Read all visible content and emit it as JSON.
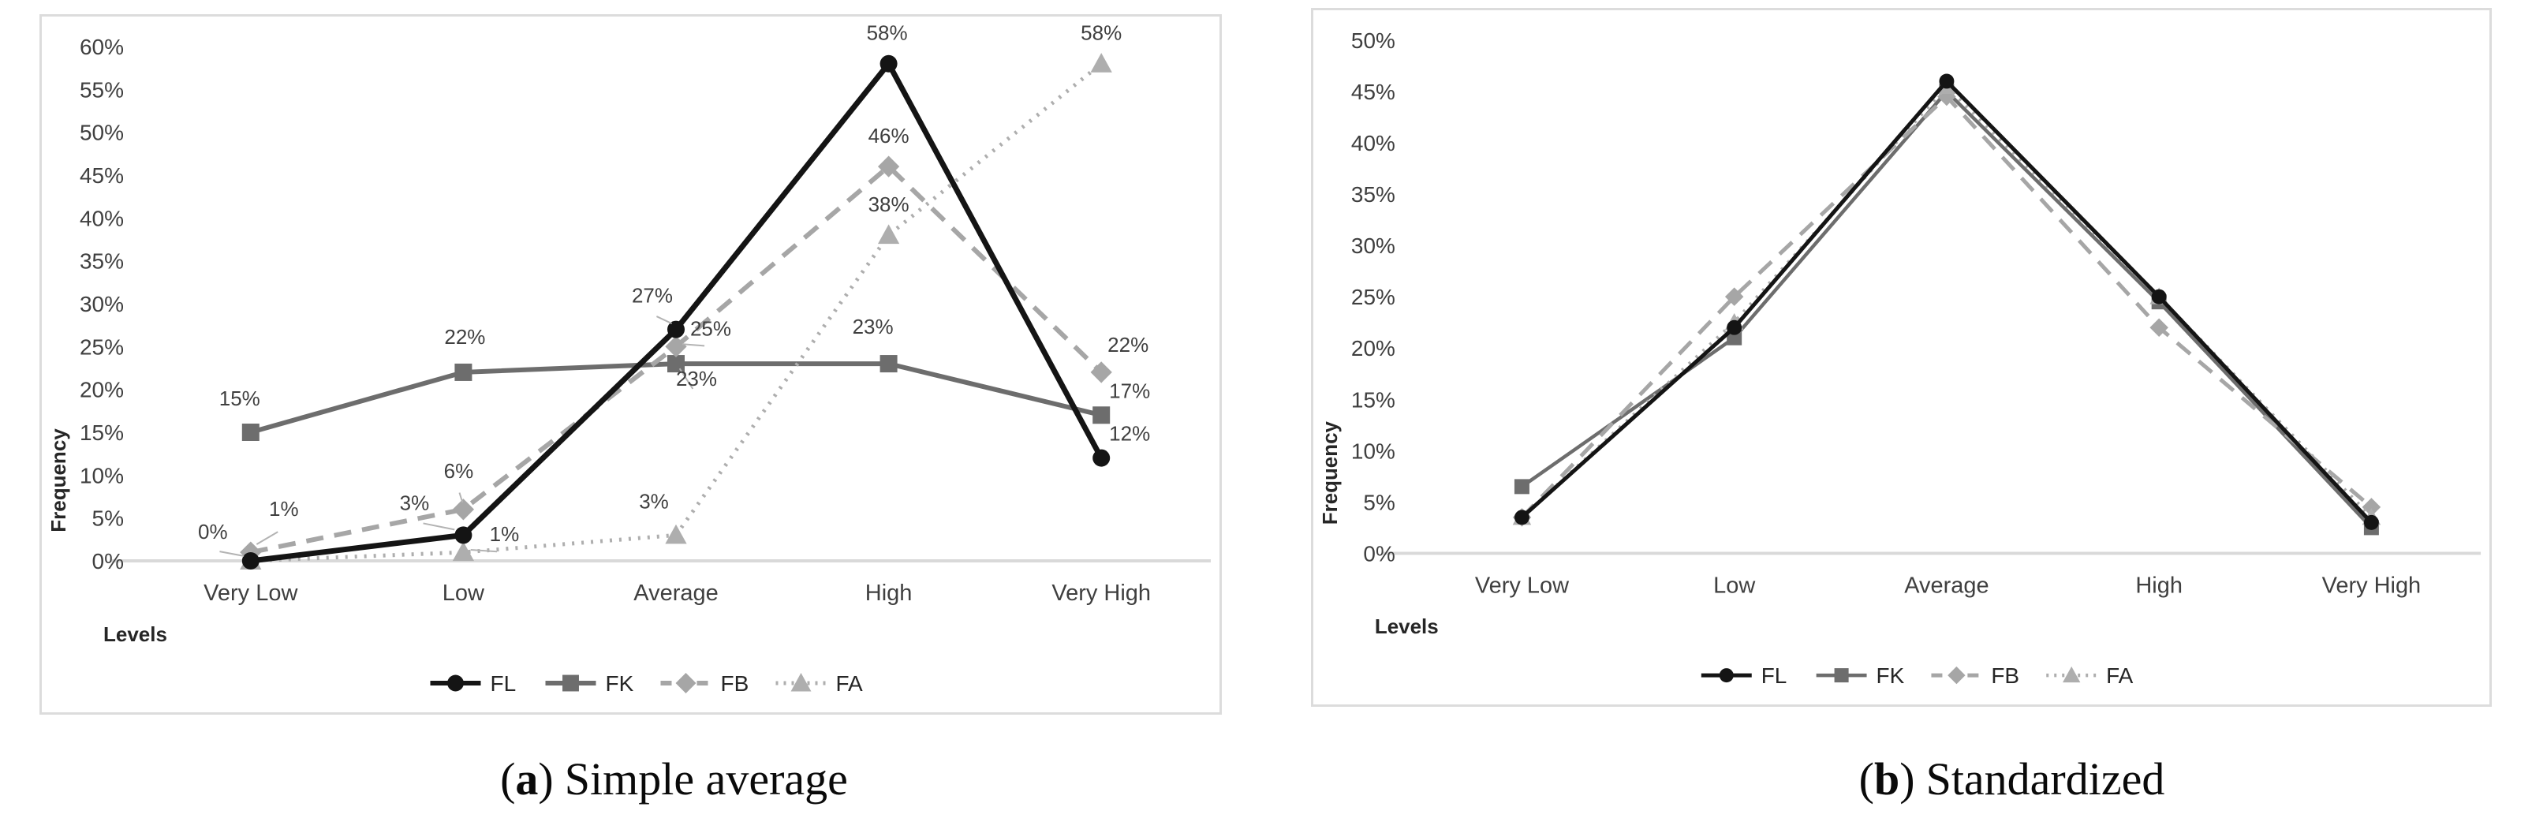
{
  "page": {
    "background": "#ffffff"
  },
  "figure": {
    "panels": [
      {
        "paren_open": "(",
        "caption_letter": "a",
        "paren_close": ")",
        "caption_text": "Simple average"
      },
      {
        "paren_open": "(",
        "caption_letter": "b",
        "paren_close": ")",
        "caption_text": "Standardized"
      }
    ]
  },
  "colors": {
    "axis": "#d9d9d9",
    "text": "#3f3f3f",
    "leader": "#b3b3b3",
    "fl": "#141414",
    "fk": "#6d6d6d",
    "fb": "#a6a6a6",
    "fa": "#aeaeae"
  },
  "chart_data": [
    {
      "type": "line",
      "title": "",
      "xlabel": "Levels",
      "ylabel": "Frequency",
      "categories": [
        "Very Low",
        "Low",
        "Average",
        "High",
        "Very High"
      ],
      "ylim": [
        0,
        60
      ],
      "ytick_step": 5,
      "y_tick_labels": [
        "0%",
        "5%",
        "10%",
        "15%",
        "20%",
        "25%",
        "30%",
        "35%",
        "40%",
        "45%",
        "50%",
        "55%",
        "60%"
      ],
      "grid": false,
      "legend_position": "bottom-center",
      "data_labels": true,
      "marker_size": 22,
      "draw_order": [
        1,
        2,
        3,
        0
      ],
      "series": [
        {
          "name": "FL",
          "color": "#141414",
          "line": "solid",
          "marker": "circle",
          "width": 7,
          "values": [
            0,
            3,
            27,
            58,
            12
          ],
          "point_labels": [
            "0%",
            "3%",
            "27%",
            "58%",
            "12%"
          ],
          "label_offsets": [
            [
              -48,
              -28,
              1
            ],
            [
              -62,
              -32,
              1
            ],
            [
              -30,
              -34,
              1
            ],
            [
              -2,
              -30,
              0
            ],
            [
              36,
              -22,
              0
            ]
          ]
        },
        {
          "name": "FK",
          "color": "#6d6d6d",
          "line": "solid",
          "marker": "square",
          "width": 6,
          "values": [
            15,
            22,
            23,
            23,
            17
          ],
          "point_labels": [
            "15%",
            "22%",
            "23%",
            "23%",
            "17%"
          ],
          "label_offsets": [
            [
              -14,
              -34,
              0
            ],
            [
              2,
              -36,
              0
            ],
            [
              26,
              28,
              1
            ],
            [
              -20,
              -38,
              0
            ],
            [
              36,
              -22,
              0
            ]
          ]
        },
        {
          "name": "FB",
          "color": "#a6a6a6",
          "line": "dashed",
          "marker": "diamond",
          "width": 6,
          "values": [
            1,
            6,
            25,
            46,
            22
          ],
          "point_labels": [
            "1%",
            "6%",
            "25%",
            "46%",
            "22%"
          ],
          "label_offsets": [
            [
              42,
              -46,
              1
            ],
            [
              -6,
              -40,
              1
            ],
            [
              44,
              -14,
              1
            ],
            [
              0,
              -30,
              0
            ],
            [
              34,
              -26,
              0
            ]
          ]
        },
        {
          "name": "FA",
          "color": "#aeaeae",
          "line": "dotted",
          "marker": "triangle",
          "width": 5,
          "values": [
            0,
            1,
            3,
            38,
            58
          ],
          "point_labels": [
            null,
            "1%",
            "3%",
            "38%",
            "58%"
          ],
          "label_offsets": [
            null,
            [
              52,
              -14,
              1
            ],
            [
              -28,
              -34,
              0
            ],
            [
              0,
              -30,
              0
            ],
            [
              0,
              -30,
              0
            ]
          ]
        }
      ]
    },
    {
      "type": "line",
      "title": "",
      "xlabel": "Levels",
      "ylabel": "Frequency",
      "categories": [
        "Very Low",
        "Low",
        "Average",
        "High",
        "Very High"
      ],
      "ylim": [
        0,
        50
      ],
      "ytick_step": 5,
      "y_tick_labels": [
        "0%",
        "5%",
        "10%",
        "15%",
        "20%",
        "25%",
        "30%",
        "35%",
        "40%",
        "45%",
        "50%"
      ],
      "grid": false,
      "legend_position": "bottom-center",
      "data_labels": false,
      "marker_size": 19,
      "draw_order": [
        1,
        2,
        3,
        0
      ],
      "series": [
        {
          "name": "FL",
          "color": "#141414",
          "line": "solid",
          "marker": "circle",
          "width": 5,
          "values": [
            3.5,
            22,
            46,
            25,
            3
          ]
        },
        {
          "name": "FK",
          "color": "#6d6d6d",
          "line": "solid",
          "marker": "square",
          "width": 4.5,
          "values": [
            6.5,
            21,
            45,
            24.5,
            2.5
          ]
        },
        {
          "name": "FB",
          "color": "#a6a6a6",
          "line": "dashed",
          "marker": "diamond",
          "width": 5,
          "values": [
            3.5,
            25,
            44.5,
            22,
            4.5
          ]
        },
        {
          "name": "FA",
          "color": "#aeaeae",
          "line": "dotted",
          "marker": "triangle",
          "width": 4.5,
          "values": [
            3.5,
            22.5,
            45.5,
            25,
            3.5
          ]
        }
      ]
    }
  ]
}
